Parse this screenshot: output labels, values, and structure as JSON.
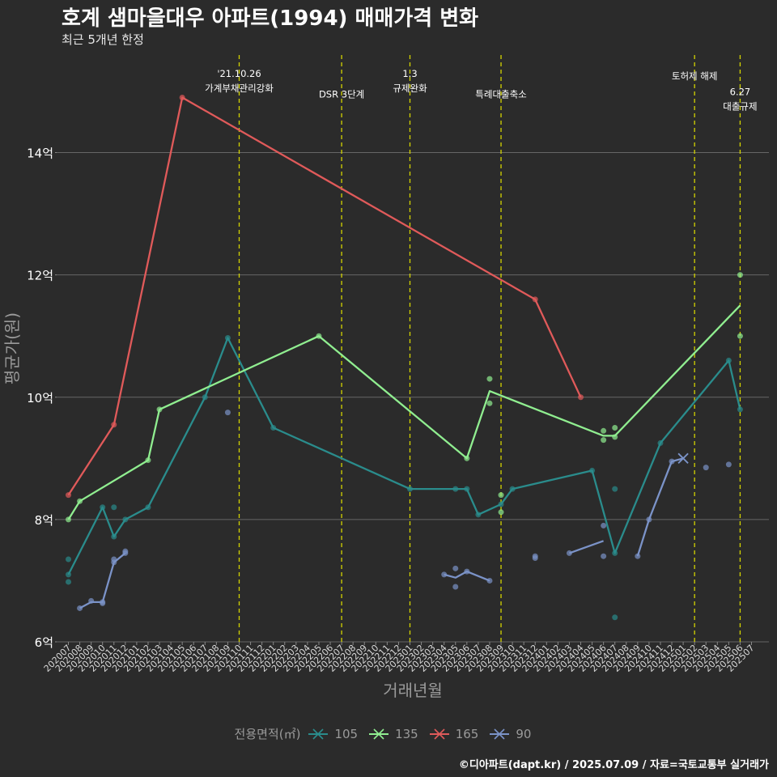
{
  "title": "호계 샘마을대우 아파트(1994) 매매가격 변화",
  "subtitle": "최근 5개년 한정",
  "caption": "©디아파트(dapt.kr) / 2025.07.09 / 자료=국토교통부 실거래가",
  "legend_title": "전용면적(㎡)",
  "chart_data": {
    "type": "line",
    "xlabel": "거래년월",
    "ylabel": "평균가(원)",
    "x_categories": [
      "202007",
      "202008",
      "202009",
      "202010",
      "202011",
      "202012",
      "202101",
      "202102",
      "202103",
      "202104",
      "202105",
      "202106",
      "202107",
      "202108",
      "202109",
      "202110",
      "202111",
      "202112",
      "202201",
      "202202",
      "202203",
      "202204",
      "202205",
      "202206",
      "202207",
      "202208",
      "202209",
      "202210",
      "202211",
      "202212",
      "202301",
      "202302",
      "202303",
      "202304",
      "202305",
      "202306",
      "202307",
      "202308",
      "202309",
      "202310",
      "202311",
      "202312",
      "202401",
      "202402",
      "202403",
      "202404",
      "202405",
      "202406",
      "202407",
      "202408",
      "202409",
      "202410",
      "202411",
      "202412",
      "202501",
      "202502",
      "202503",
      "202504",
      "202505",
      "202506",
      "202507"
    ],
    "ylim": [
      6,
      15.5
    ],
    "y_ticks": [
      6,
      8,
      10,
      12,
      14
    ],
    "y_tick_labels": [
      "6억",
      "8억",
      "10억",
      "12억",
      "14억"
    ],
    "grid": true,
    "legend_position": "bottom",
    "series": [
      {
        "name": "105",
        "color": "#2a8c8c",
        "line": [
          [
            "202007",
            7.1
          ],
          [
            "202010",
            8.2
          ],
          [
            "202011",
            7.72
          ],
          [
            "202012",
            8.0
          ],
          [
            "202102",
            8.2
          ],
          [
            "202107",
            10.0
          ],
          [
            "202109",
            10.97
          ],
          [
            "202201",
            9.5
          ],
          [
            "202301",
            8.5
          ],
          [
            "202305",
            8.5
          ],
          [
            "202306",
            8.5
          ],
          [
            "202307",
            8.08
          ],
          [
            "202309",
            8.25
          ],
          [
            "202310",
            8.5
          ],
          [
            "202405",
            8.8
          ],
          [
            "202407",
            7.45
          ],
          [
            "202411",
            9.25
          ],
          [
            "202505",
            10.6
          ],
          [
            "202506",
            9.8
          ]
        ],
        "points": [
          [
            "202007",
            7.35
          ],
          [
            "202007",
            7.1
          ],
          [
            "202007",
            6.98
          ],
          [
            "202010",
            8.2
          ],
          [
            "202011",
            8.2
          ],
          [
            "202011",
            7.72
          ],
          [
            "202012",
            8.0
          ],
          [
            "202102",
            8.2
          ],
          [
            "202107",
            10.0
          ],
          [
            "202109",
            10.97
          ],
          [
            "202201",
            9.5
          ],
          [
            "202301",
            8.5
          ],
          [
            "202305",
            8.5
          ],
          [
            "202306",
            8.5
          ],
          [
            "202307",
            8.08
          ],
          [
            "202309",
            8.25
          ],
          [
            "202310",
            8.5
          ],
          [
            "202405",
            8.8
          ],
          [
            "202407",
            8.5
          ],
          [
            "202407",
            7.45
          ],
          [
            "202407",
            6.4
          ],
          [
            "202411",
            9.25
          ],
          [
            "202505",
            10.6
          ],
          [
            "202506",
            9.8
          ]
        ]
      },
      {
        "name": "135",
        "color": "#90ee90",
        "line": [
          [
            "202007",
            8.0
          ],
          [
            "202008",
            8.3
          ],
          [
            "202102",
            8.97
          ],
          [
            "202103",
            9.8
          ],
          [
            "202205",
            11.0
          ],
          [
            "202306",
            9.0
          ],
          [
            "202308",
            10.1
          ],
          [
            "202406",
            9.37
          ],
          [
            "202407",
            9.37
          ],
          [
            "202506",
            11.5
          ]
        ],
        "points": [
          [
            "202007",
            8.0
          ],
          [
            "202008",
            8.3
          ],
          [
            "202102",
            8.97
          ],
          [
            "202103",
            9.8
          ],
          [
            "202205",
            11.0
          ],
          [
            "202306",
            9.0
          ],
          [
            "202308",
            10.3
          ],
          [
            "202308",
            9.9
          ],
          [
            "202309",
            8.4
          ],
          [
            "202309",
            8.12
          ],
          [
            "202406",
            9.45
          ],
          [
            "202406",
            9.3
          ],
          [
            "202407",
            9.5
          ],
          [
            "202407",
            9.35
          ],
          [
            "202506",
            12.0
          ],
          [
            "202506",
            11.0
          ]
        ]
      },
      {
        "name": "165",
        "color": "#e05a5a",
        "line": [
          [
            "202007",
            8.4
          ],
          [
            "202011",
            9.55
          ],
          [
            "202105",
            14.9
          ],
          [
            "202312",
            11.6
          ],
          [
            "202404",
            10.0
          ]
        ],
        "points": [
          [
            "202007",
            8.4
          ],
          [
            "202011",
            9.55
          ],
          [
            "202105",
            14.9
          ],
          [
            "202312",
            11.6
          ],
          [
            "202404",
            10.0
          ]
        ]
      },
      {
        "name": "90",
        "color": "#7b93c8",
        "line_segments": [
          [
            [
              "202008",
              6.55
            ],
            [
              "202009",
              6.65
            ],
            [
              "202010",
              6.65
            ],
            [
              "202011",
              7.3
            ],
            [
              "202012",
              7.45
            ]
          ],
          [
            [
              "202304",
              7.1
            ],
            [
              "202305",
              7.05
            ],
            [
              "202306",
              7.15
            ],
            [
              "202308",
              7.0
            ]
          ],
          [
            [
              "202403",
              7.45
            ],
            [
              "202406",
              7.65
            ]
          ],
          [
            [
              "202409",
              7.4
            ],
            [
              "202410",
              8.0
            ],
            [
              "202412",
              8.95
            ],
            [
              "202501",
              9.0
            ]
          ]
        ],
        "points": [
          [
            "202008",
            6.55
          ],
          [
            "202009",
            6.67
          ],
          [
            "202010",
            6.65
          ],
          [
            "202010",
            6.63
          ],
          [
            "202011",
            7.35
          ],
          [
            "202011",
            7.3
          ],
          [
            "202012",
            7.48
          ],
          [
            "202012",
            7.45
          ],
          [
            "202109",
            9.75
          ],
          [
            "202304",
            7.1
          ],
          [
            "202305",
            7.2
          ],
          [
            "202305",
            6.9
          ],
          [
            "202306",
            7.15
          ],
          [
            "202308",
            7.0
          ],
          [
            "202312",
            7.4
          ],
          [
            "202312",
            7.37
          ],
          [
            "202403",
            7.45
          ],
          [
            "202406",
            7.9
          ],
          [
            "202406",
            7.4
          ],
          [
            "202409",
            7.4
          ],
          [
            "202410",
            8.0
          ],
          [
            "202412",
            8.95
          ],
          [
            "202503",
            8.85
          ],
          [
            "202505",
            8.9
          ]
        ],
        "x_marks": [
          [
            "202501",
            9.0
          ]
        ]
      }
    ],
    "annotations": [
      {
        "x": "202110",
        "lines": [
          "'21.10.26",
          "가계부채관리강화"
        ],
        "y_label": 15.0
      },
      {
        "x": "202207",
        "lines": [
          "DSR 3단계"
        ],
        "y_label": 14.9
      },
      {
        "x": "202301",
        "lines": [
          "1.3",
          "규제완화"
        ],
        "y_label": 15.0
      },
      {
        "x": "202309",
        "lines": [
          "특례대출축소"
        ],
        "y_label": 14.9
      },
      {
        "x": "202502",
        "lines": [
          "토허제 해제"
        ],
        "y_label": 15.2
      },
      {
        "x": "202506",
        "lines": [
          "6.27",
          "대출규제"
        ],
        "y_label": 14.7
      }
    ]
  }
}
